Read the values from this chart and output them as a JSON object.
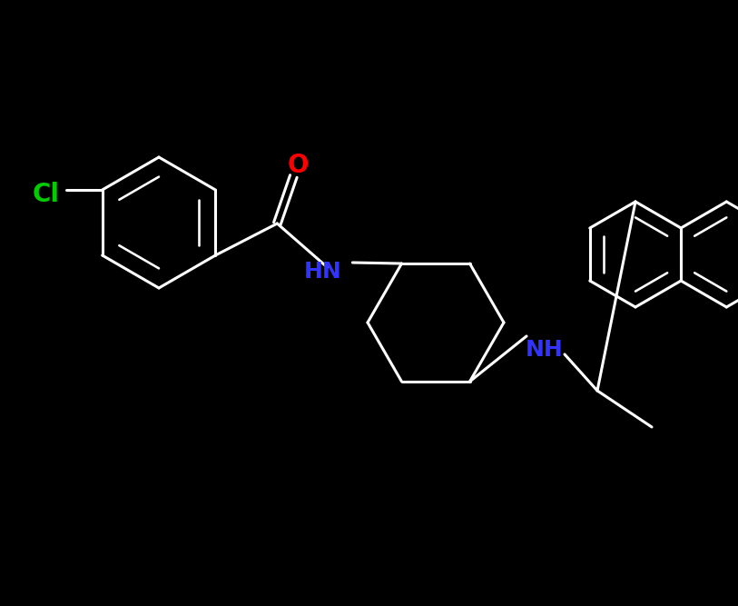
{
  "background_color": "#000000",
  "bond_color": "#ffffff",
  "atom_colors": {
    "O": "#ff0000",
    "N": "#3333ff",
    "Cl": "#00cc00",
    "C": "#ffffff"
  },
  "figsize": [
    8.13,
    6.67
  ],
  "dpi": 100,
  "bond_width": 2.2,
  "font_size": 18,
  "font_weight": "bold"
}
